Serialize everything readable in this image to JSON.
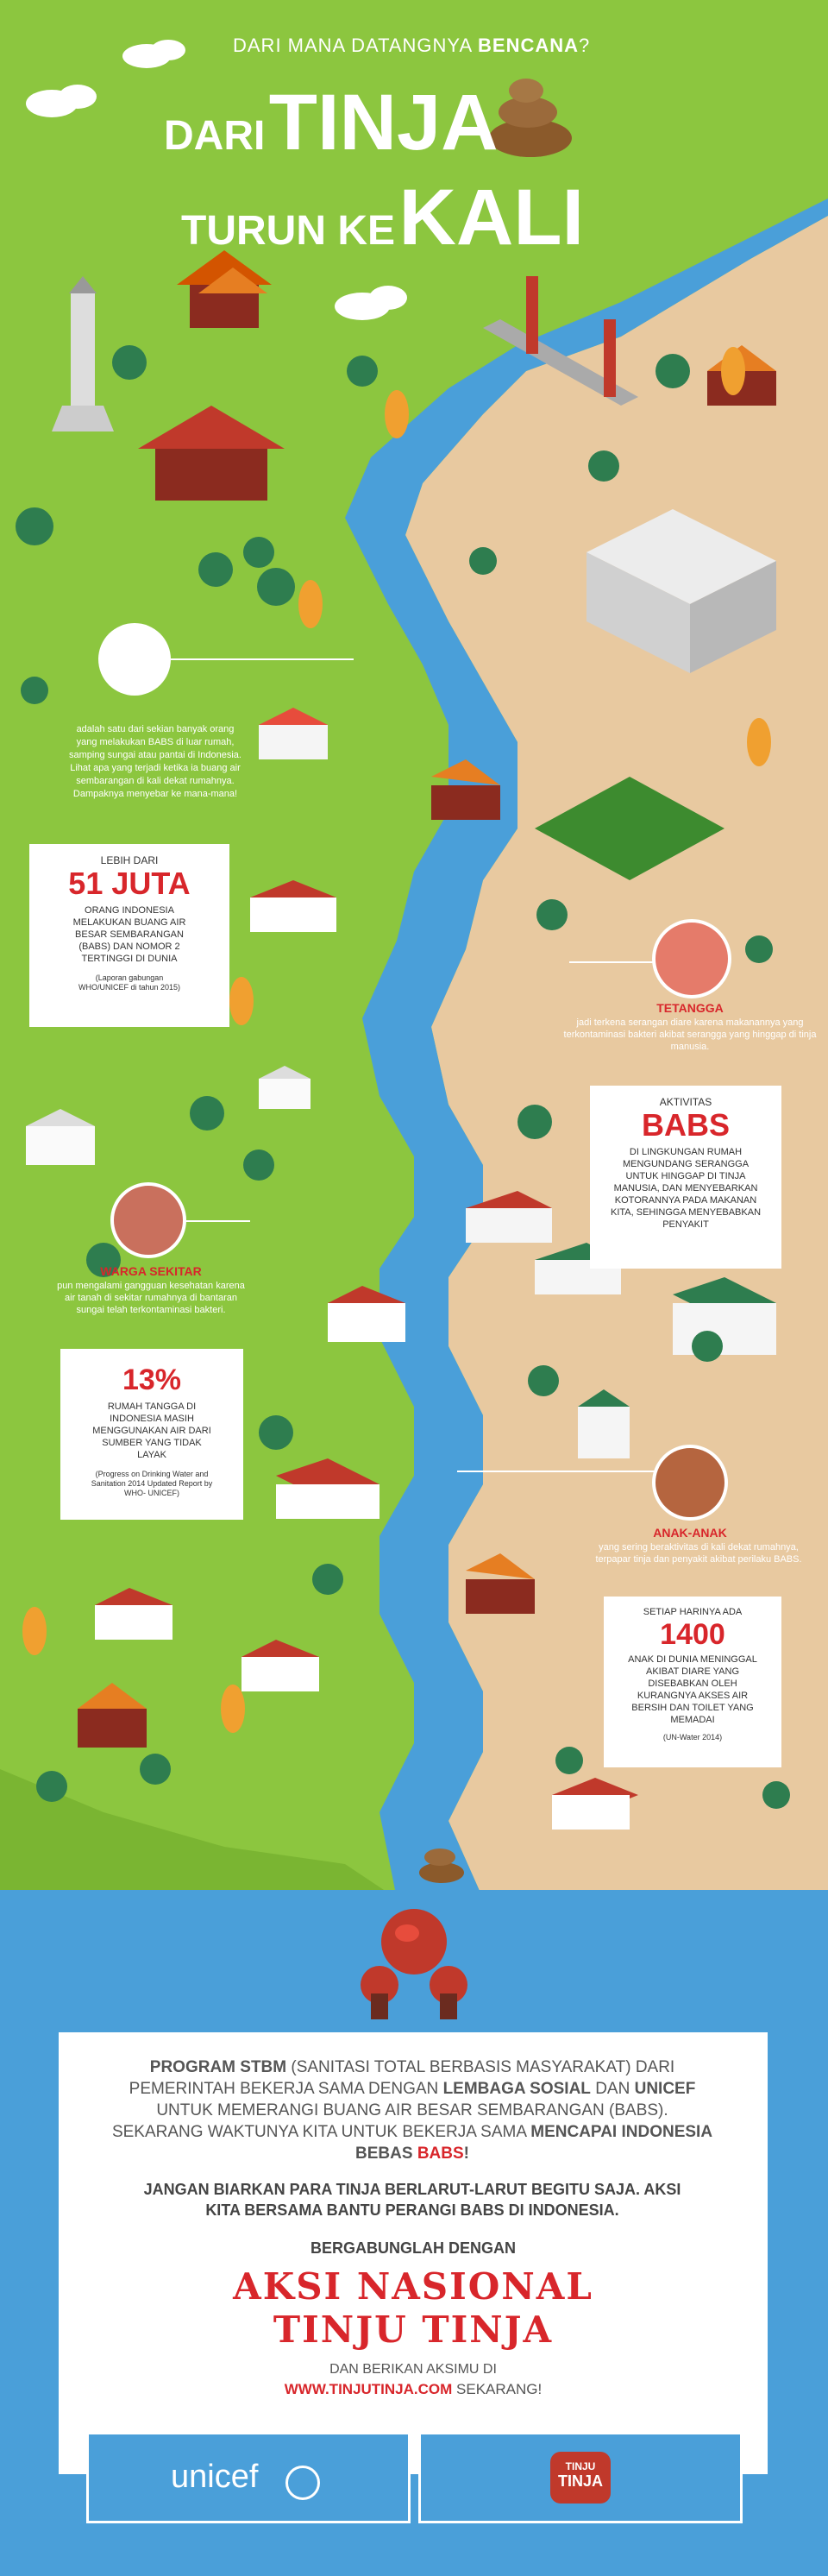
{
  "header": {
    "question_prefix": "DARI MANA DATANGNYA ",
    "question_bold": "BENCANA",
    "question_suffix": "?",
    "title_line1_small": "DARI",
    "title_line1_big": "TINJA",
    "title_line2_small": "TURUN KE",
    "title_line2_big": "KALI"
  },
  "intro": {
    "text": "adalah satu dari sekian banyak orang yang melakukan BABS di luar rumah, samping sungai atau pantai di Indonesia. Lihat apa yang terjadi ketika ia buang air sembarangan di kali dekat rumahnya. Dampaknya menyebar ke mana-mana!"
  },
  "stat_51": {
    "pre": "LEBIH DARI",
    "big": "51 JUTA",
    "body": "ORANG INDONESIA MELAKUKAN BUANG AIR BESAR SEMBARANGAN (BABS) DAN NOMOR 2 TERTINGGI DI DUNIA",
    "source": "(Laporan gabungan WHO/UNICEF di tahun 2015)"
  },
  "tetangga": {
    "title": "TETANGGA",
    "text": "jadi terkena serangan diare karena makanannya yang terkontaminasi bakteri akibat serangga yang hinggap di tinja manusia."
  },
  "aktivitas": {
    "pre": "AKTIVITAS",
    "big": "BABS",
    "body": "DI LINGKUNGAN RUMAH MENGUNDANG SERANGGA UNTUK HINGGAP DI TINJA MANUSIA, DAN MENYEBARKAN KOTORANNYA PADA MAKANAN KITA, SEHINGGA MENYEBABKAN PENYAKIT"
  },
  "warga": {
    "title": "WARGA SEKITAR",
    "text": "pun mengalami gangguan kesehatan karena air tanah di sekitar rumahnya di bantaran sungai telah terkontaminasi bakteri."
  },
  "stat_13": {
    "big": "13%",
    "body": "RUMAH TANGGA DI INDONESIA MASIH MENGGUNAKAN AIR DARI SUMBER YANG TIDAK LAYAK",
    "source": "(Progress on Drinking Water and Sanitation 2014 Updated Report by WHO- UNICEF)"
  },
  "anak": {
    "title": "ANAK-ANAK",
    "text": "yang sering beraktivitas di kali dekat rumahnya, terpapar tinja dan penyakit akibat perilaku BABS."
  },
  "stat_1400": {
    "pre": "SETIAP HARINYA ADA",
    "big": "1400",
    "body": "ANAK DI DUNIA MENINGGAL AKIBAT DIARE YANG DISEBABKAN OLEH KURANGNYA AKSES AIR BERSIH DAN TOILET YANG MEMADAI",
    "source": "(UN-Water 2014)"
  },
  "program": {
    "p1_a": "PROGRAM STBM",
    "p1_b": " (SANITASI TOTAL BERBASIS MASYARAKAT) DARI PEMERINTAH BEKERJA SAMA DENGAN ",
    "p1_c": "LEMBAGA SOSIAL",
    "p1_d": " DAN ",
    "p1_e": "UNICEF",
    "p1_f": " UNTUK MEMERANGI BUANG AIR BESAR SEMBARANGAN (BABS). SEKARANG WAKTUNYA KITA UNTUK BEKERJA SAMA ",
    "p1_g": "MENCAPAI INDONESIA BEBAS ",
    "p1_h": "BABS",
    "p1_i": "!",
    "p2": "JANGAN BIARKAN PARA TINJA BERLARUT-LARUT BEGITU SAJA. AKSI KITA BERSAMA BANTU PERANGI BABS DI INDONESIA.",
    "join": "BERGABUNGLAH DENGAN",
    "aksi_line1": "AKSI NASIONAL",
    "aksi_line2": "TINJU TINJA",
    "cta_pre": "DAN BERIKAN AKSIMU DI",
    "cta_url": "WWW.TINJUTINJA.COM",
    "cta_post": " SEKARANG!"
  },
  "logos": {
    "unicef": "unicef",
    "tinju_top": "TINJU",
    "tinju_bottom": "TINJA"
  },
  "colors": {
    "grass": "#8cc63f",
    "river": "#4a9fd9",
    "sand": "#e8c9a0",
    "accent_red": "#d8262b"
  }
}
